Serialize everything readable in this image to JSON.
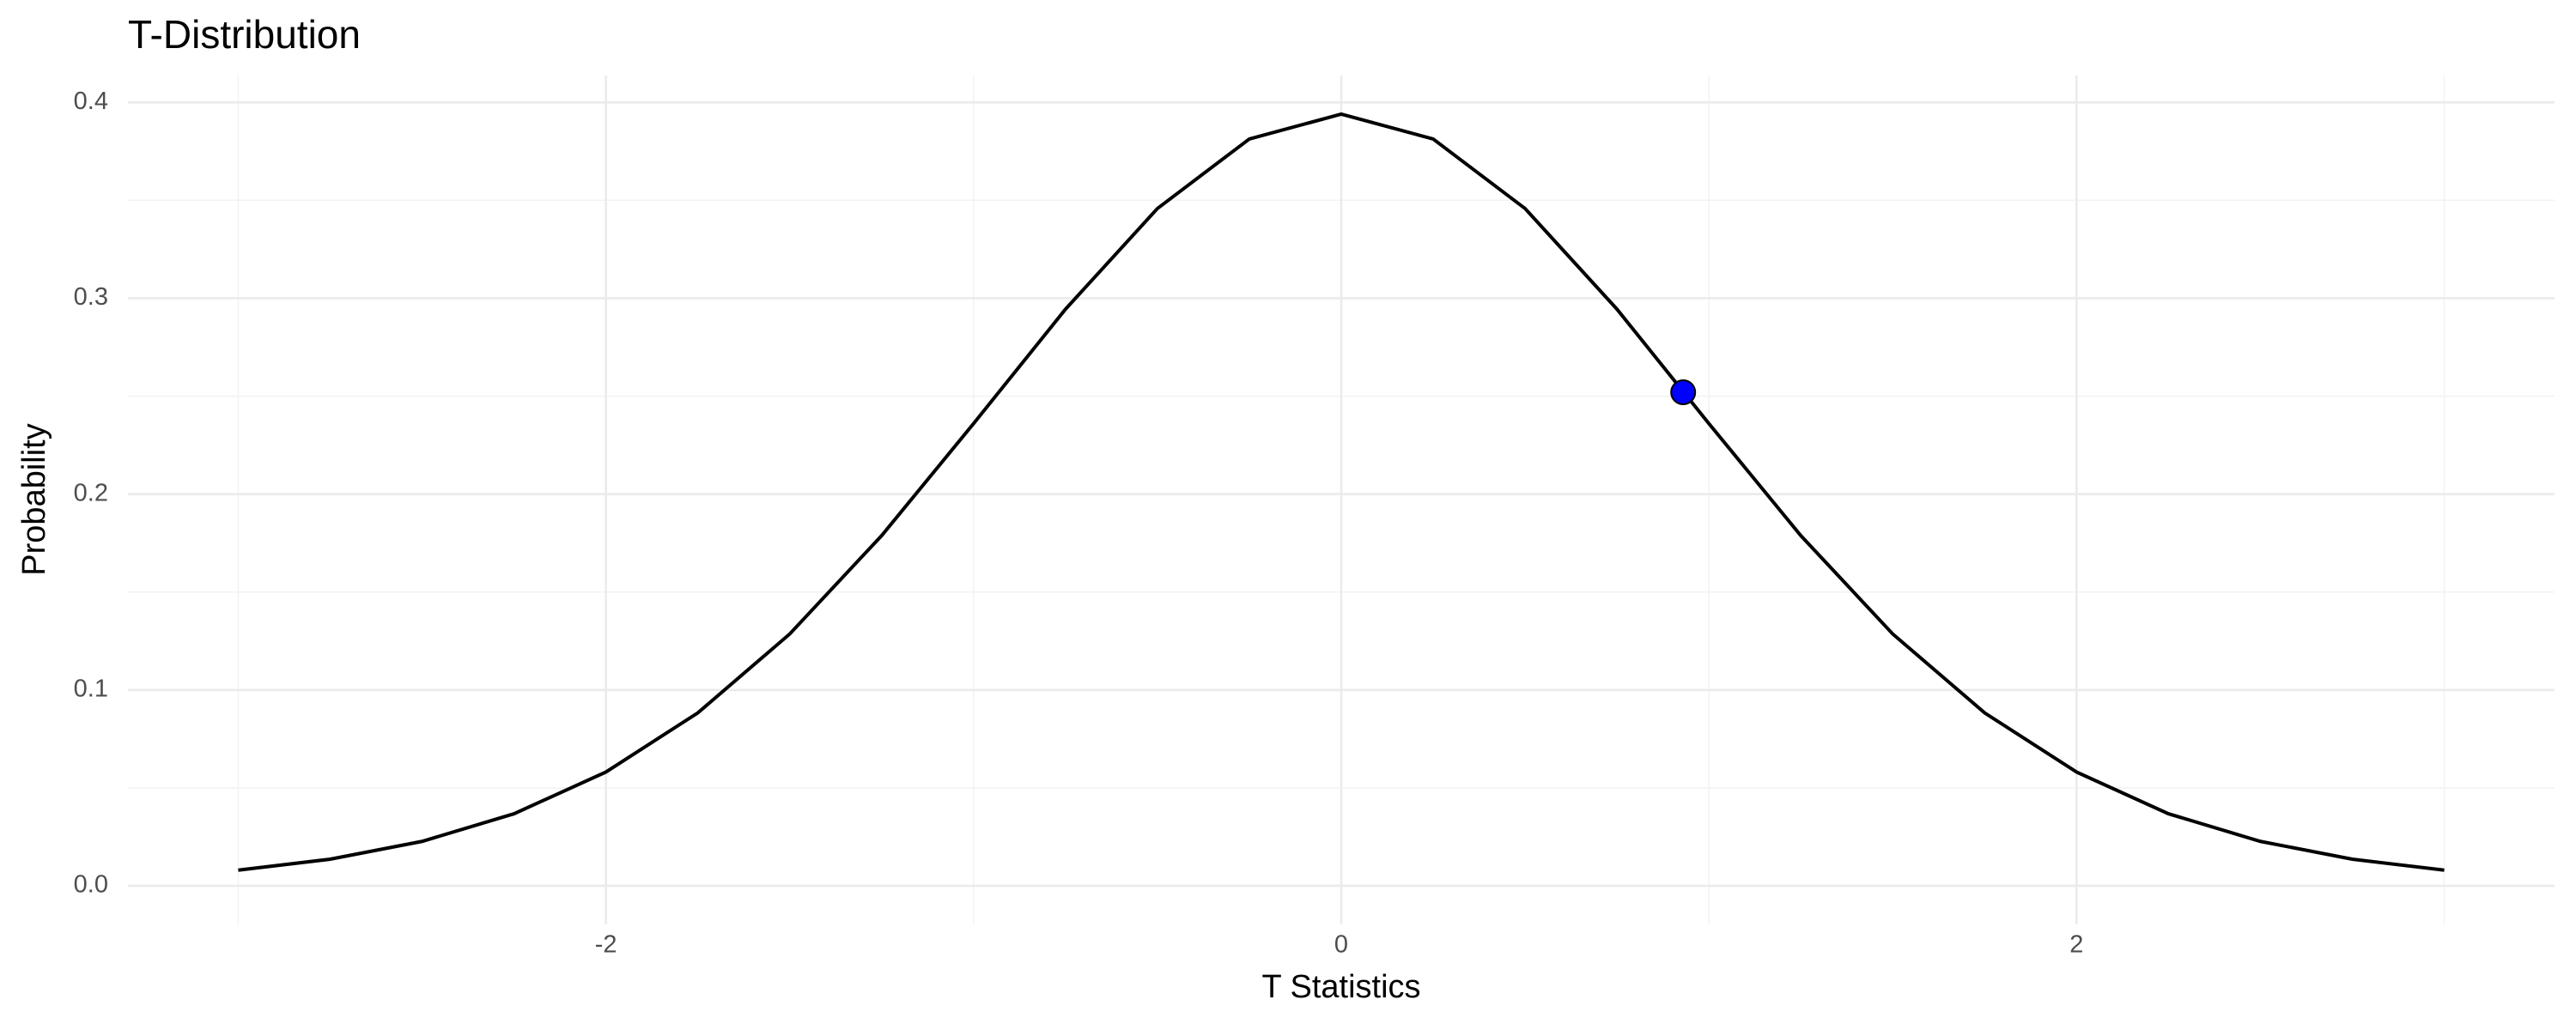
{
  "chart_data": {
    "type": "line",
    "title": "T-Distribution",
    "x_label": "T Statistics",
    "y_label": "Probability",
    "x": [
      -3,
      -2.75,
      -2.5,
      -2.25,
      -2,
      -1.75,
      -1.5,
      -1.25,
      -1,
      -0.75,
      -0.5,
      -0.25,
      0,
      0.25,
      0.5,
      0.75,
      1,
      1.25,
      1.5,
      1.75,
      2,
      2.25,
      2.5,
      2.75,
      3
    ],
    "values": [
      0.008,
      0.0136,
      0.0227,
      0.0368,
      0.0581,
      0.0883,
      0.1286,
      0.1788,
      0.236,
      0.2944,
      0.3458,
      0.3813,
      0.394,
      0.3813,
      0.3458,
      0.2944,
      0.236,
      0.1788,
      0.1286,
      0.0883,
      0.0581,
      0.0368,
      0.0227,
      0.0136,
      0.008
    ],
    "color": "#000000",
    "points": {
      "type": "scatter",
      "x": [
        0.93
      ],
      "values": [
        0.252
      ],
      "color": "#0000ff"
    },
    "xlim": [
      -3.3,
      3.3
    ],
    "ylim": [
      -0.0197,
      0.4137
    ],
    "xticks": [
      -2,
      0,
      2
    ],
    "yticks": [
      {
        "value": 0,
        "label": "0.0"
      },
      0.1,
      0.2,
      0.3,
      0.4
    ],
    "grid": true
  }
}
